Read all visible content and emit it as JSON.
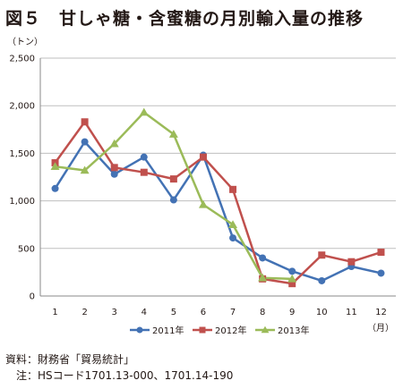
{
  "title": "図５　甘しゃ糖・含蜜糖の月別輸入量の推移",
  "source": {
    "line1": "資料：財務省「貿易統計」",
    "line2": "　注：HSコード1701.13-000、1701.14-190"
  },
  "chart_data": {
    "type": "line",
    "title": "",
    "y_unit": "（トン）",
    "x_unit": "（月）",
    "x": [
      1,
      2,
      3,
      4,
      5,
      6,
      7,
      8,
      9,
      10,
      11,
      12
    ],
    "x_tick_labels": [
      "1",
      "2",
      "3",
      "4",
      "5",
      "6",
      "7",
      "8",
      "9",
      "10",
      "11",
      "12"
    ],
    "ylim": [
      0,
      2500
    ],
    "y_ticks": [
      0,
      500,
      1000,
      1500,
      2000,
      2500
    ],
    "y_tick_labels": [
      "0",
      "500",
      "1,000",
      "1,500",
      "2,000",
      "2,500"
    ],
    "grid": "horizontal",
    "legend_position": "bottom",
    "series": [
      {
        "name": "2011年",
        "color": "#4372b4",
        "marker": "circle",
        "values": [
          1130,
          1620,
          1280,
          1460,
          1010,
          1480,
          610,
          400,
          260,
          160,
          310,
          240
        ]
      },
      {
        "name": "2012年",
        "color": "#c0504d",
        "marker": "square",
        "values": [
          1400,
          1830,
          1350,
          1300,
          1230,
          1460,
          1120,
          180,
          130,
          430,
          360,
          460
        ]
      },
      {
        "name": "2013年",
        "color": "#9bbb59",
        "marker": "triangle",
        "values": [
          1360,
          1320,
          1600,
          1930,
          1700,
          960,
          750,
          190,
          180,
          null,
          null,
          null
        ]
      }
    ]
  }
}
